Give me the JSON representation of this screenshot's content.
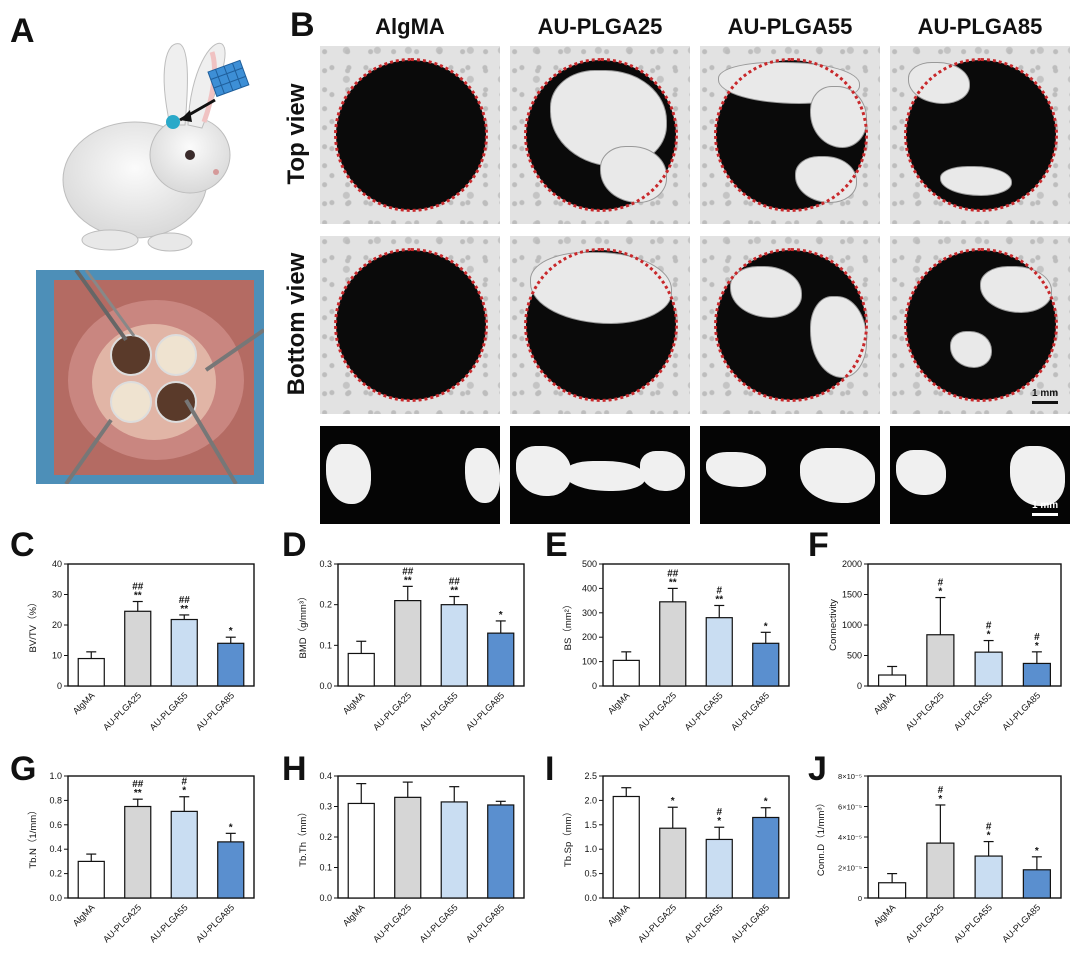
{
  "panels": {
    "A": "A",
    "B": "B",
    "C": "C",
    "D": "D",
    "E": "E",
    "F": "F",
    "G": "G",
    "H": "H",
    "I": "I",
    "J": "J"
  },
  "columns": [
    "AlgMA",
    "AU-PLGA25",
    "AU-PLGA55",
    "AU-PLGA85"
  ],
  "rows": {
    "top": "Top view",
    "bottom": "Bottom view"
  },
  "scalebar_label": "1 mm",
  "colors": {
    "AlgMA": "#ffffff",
    "AU-PLGA25": "#d6d6d6",
    "AU-PLGA55": "#c9ddf2",
    "AU-PLGA85": "#5a8fcf"
  },
  "chart_data": [
    {
      "id": "C",
      "type": "bar",
      "ylabel": "BV/TV（%）",
      "ylim": [
        0,
        40
      ],
      "yticks": [
        "0",
        "10",
        "20",
        "30",
        "40"
      ],
      "categories": [
        "AlgMA",
        "AU-PLGA25",
        "AU-PLGA55",
        "AU-PLGA85"
      ],
      "values": [
        9,
        24.5,
        21.8,
        14
      ],
      "errors": [
        2.2,
        3.2,
        1.5,
        2
      ],
      "marks_top": [
        "",
        "##",
        "##",
        ""
      ],
      "marks_bottom": [
        "",
        "**",
        "**",
        "*"
      ]
    },
    {
      "id": "D",
      "type": "bar",
      "ylabel": "BMD（g/mm³）",
      "ylim": [
        0,
        0.3
      ],
      "yticks": [
        "0.0",
        "0.1",
        "0.2",
        "0.3"
      ],
      "categories": [
        "AlgMA",
        "AU-PLGA25",
        "AU-PLGA55",
        "AU-PLGA85"
      ],
      "values": [
        0.08,
        0.21,
        0.2,
        0.13
      ],
      "errors": [
        0.03,
        0.035,
        0.02,
        0.03
      ],
      "marks_top": [
        "",
        "##",
        "##",
        ""
      ],
      "marks_bottom": [
        "",
        "**",
        "**",
        "*"
      ]
    },
    {
      "id": "E",
      "type": "bar",
      "ylabel": "BS（mm²）",
      "ylim": [
        0,
        500
      ],
      "yticks": [
        "0",
        "100",
        "200",
        "300",
        "400",
        "500"
      ],
      "categories": [
        "AlgMA",
        "AU-PLGA25",
        "AU-PLGA55",
        "AU-PLGA85"
      ],
      "values": [
        105,
        345,
        280,
        175
      ],
      "errors": [
        35,
        55,
        50,
        45
      ],
      "marks_top": [
        "",
        "##",
        "#",
        ""
      ],
      "marks_bottom": [
        "",
        "**",
        "**",
        "*"
      ]
    },
    {
      "id": "F",
      "type": "bar",
      "ylabel": "Connectivity",
      "ylim": [
        0,
        2000
      ],
      "yticks": [
        "0",
        "500",
        "1000",
        "1500",
        "2000"
      ],
      "categories": [
        "AlgMA",
        "AU-PLGA25",
        "AU-PLGA55",
        "AU-PLGA85"
      ],
      "values": [
        180,
        840,
        555,
        370
      ],
      "errors": [
        140,
        610,
        190,
        190
      ],
      "marks_top": [
        "",
        "#",
        "#",
        "#"
      ],
      "marks_bottom": [
        "",
        "*",
        "*",
        "*"
      ]
    },
    {
      "id": "G",
      "type": "bar",
      "ylabel": "Tb.N（1/mm）",
      "ylim": [
        0,
        1.0
      ],
      "yticks": [
        "0.0",
        "0.2",
        "0.4",
        "0.6",
        "0.8",
        "1.0"
      ],
      "categories": [
        "AlgMA",
        "AU-PLGA25",
        "AU-PLGA55",
        "AU-PLGA85"
      ],
      "values": [
        0.3,
        0.75,
        0.71,
        0.46
      ],
      "errors": [
        0.06,
        0.06,
        0.12,
        0.07
      ],
      "marks_top": [
        "",
        "##",
        "#",
        ""
      ],
      "marks_bottom": [
        "",
        "**",
        "*",
        "*"
      ]
    },
    {
      "id": "H",
      "type": "bar",
      "ylabel": "Tb.Th（mm）",
      "ylim": [
        0,
        0.4
      ],
      "yticks": [
        "0.0",
        "0.1",
        "0.2",
        "0.3",
        "0.4"
      ],
      "categories": [
        "AlgMA",
        "AU-PLGA25",
        "AU-PLGA55",
        "AU-PLGA85"
      ],
      "values": [
        0.31,
        0.33,
        0.315,
        0.305
      ],
      "errors": [
        0.065,
        0.05,
        0.05,
        0.012
      ],
      "marks_top": [
        "",
        "",
        "",
        ""
      ],
      "marks_bottom": [
        "",
        "",
        "",
        ""
      ]
    },
    {
      "id": "I",
      "type": "bar",
      "ylabel": "Tb.Sp（mm）",
      "ylim": [
        0,
        2.5
      ],
      "yticks": [
        "0.0",
        "0.5",
        "1.0",
        "1.5",
        "2.0",
        "2.5"
      ],
      "categories": [
        "AlgMA",
        "AU-PLGA25",
        "AU-PLGA55",
        "AU-PLGA85"
      ],
      "values": [
        2.08,
        1.43,
        1.2,
        1.65
      ],
      "errors": [
        0.18,
        0.43,
        0.25,
        0.2
      ],
      "marks_top": [
        "",
        "",
        "#",
        ""
      ],
      "marks_bottom": [
        "",
        "*",
        "*",
        "*"
      ]
    },
    {
      "id": "J",
      "type": "bar",
      "ylabel": "Conn.D（1/mm³）",
      "ylim": [
        0,
        8e-05
      ],
      "yticks": [
        "0",
        "2×10⁻⁵",
        "4×10⁻⁵",
        "6×10⁻⁵",
        "8×10⁻⁵"
      ],
      "categories": [
        "AlgMA",
        "AU-PLGA25",
        "AU-PLGA55",
        "AU-PLGA85"
      ],
      "values": [
        1e-05,
        3.6e-05,
        2.75e-05,
        1.85e-05
      ],
      "errors": [
        6e-06,
        2.5e-05,
        9.5e-06,
        8.5e-06
      ],
      "marks_top": [
        "",
        "#",
        "#",
        ""
      ],
      "marks_bottom": [
        "",
        "*",
        "*",
        "*"
      ]
    }
  ]
}
